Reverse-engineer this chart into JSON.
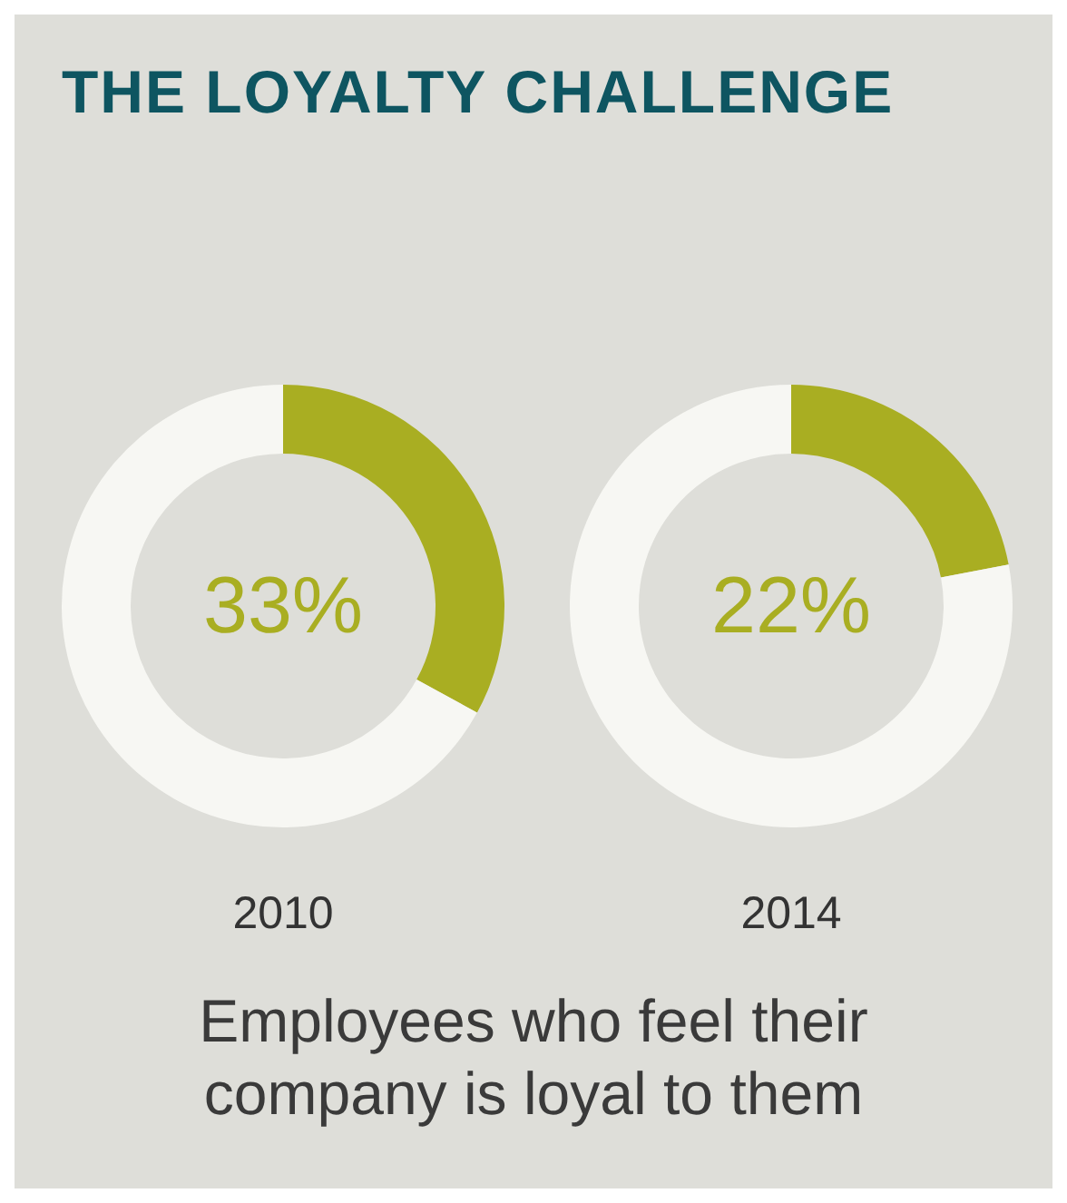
{
  "chart_data": [
    {
      "type": "donut",
      "title": "THE LOYALTY CHALLENGE",
      "xlabel": "2010",
      "categories": [
        null,
        null
      ],
      "values": [
        33,
        67
      ],
      "colors": [
        "#a9ae22",
        "#f7f7f3"
      ],
      "value_labels": [
        "33%",
        null
      ],
      "annotations": [
        "Employees who feel their company is loyal to them"
      ]
    },
    {
      "type": "donut",
      "xlabel": "2014",
      "categories": [
        null,
        null
      ],
      "values": [
        22,
        78
      ],
      "colors": [
        "#a9ae22",
        "#f7f7f3"
      ],
      "value_labels": [
        "22%",
        null
      ]
    }
  ]
}
